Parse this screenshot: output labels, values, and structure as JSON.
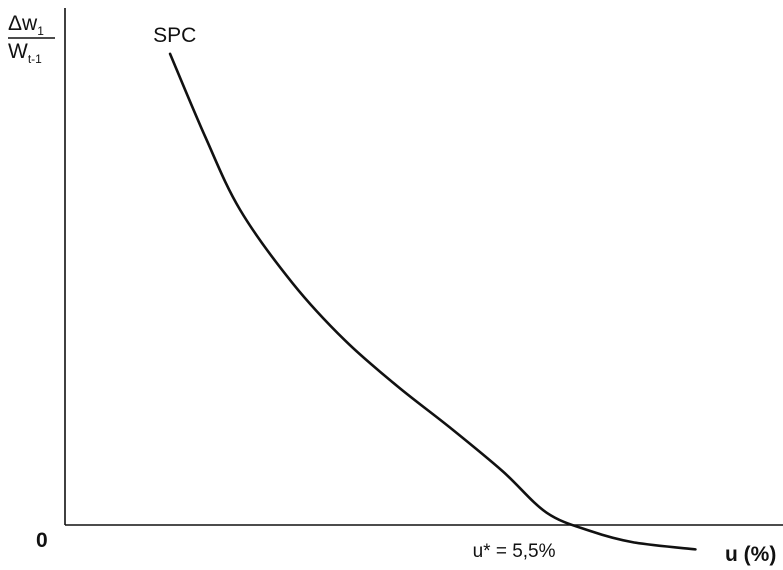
{
  "chart_data": {
    "type": "line",
    "title": "",
    "ylabel": {
      "numerator": "Δw",
      "numerator_sub": "1",
      "denominator": "W",
      "denominator_sub": "t-1"
    },
    "xlabel": "u (%)",
    "origin_label": "0",
    "grid": false,
    "series": [
      {
        "name": "SPC",
        "color": "#111111",
        "x": [
          1.2,
          1.6,
          2.0,
          2.6,
          3.2,
          3.8,
          4.4,
          5.0,
          5.5,
          6.0,
          6.5,
          7.2
        ],
        "y": [
          10.0,
          8.2,
          6.6,
          5.0,
          3.75,
          2.75,
          1.85,
          0.9,
          0.0,
          -0.4,
          -0.65,
          -0.8
        ]
      }
    ],
    "annotations": [
      {
        "text": "u* = 5,5%",
        "x": 5.5,
        "y": 0
      }
    ],
    "xlim": [
      0,
      8.2
    ],
    "ylim": [
      -1.25,
      11.0
    ]
  }
}
